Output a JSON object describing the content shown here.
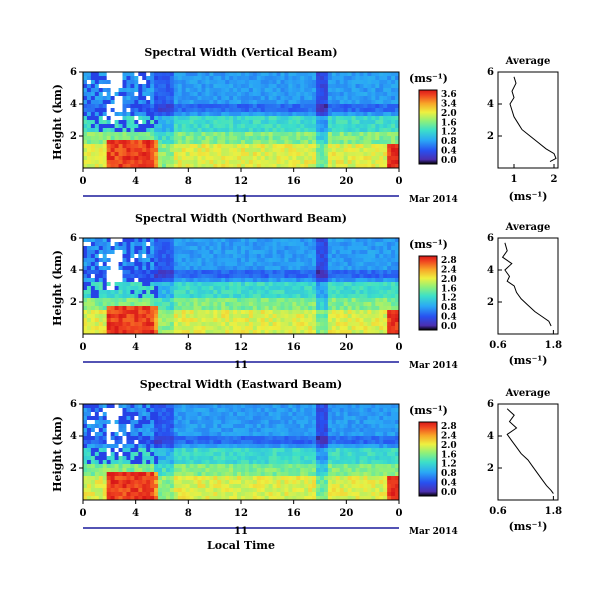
{
  "chart_data": [
    {
      "type": "heatmap",
      "title": "Spectral Width (Vertical Beam)",
      "ylabel": "Height (km)",
      "xlabel": "",
      "x_ticks": [
        "0",
        "4",
        "8",
        "12",
        "16",
        "20",
        "0"
      ],
      "y_ticks": [
        "6",
        "4",
        "2"
      ],
      "xlim": [
        0,
        24
      ],
      "ylim": [
        0,
        6
      ],
      "date_label": "11",
      "date_suffix": "Mar 2014",
      "colorbar": {
        "unit": "(ms⁻¹)",
        "ticks": [
          "3.6",
          "3.4",
          "2.0",
          "1.6",
          "1.2",
          "0.8",
          "0.4",
          "0.0"
        ]
      },
      "profile": {
        "title": "Average",
        "xlabel": "(ms⁻¹)",
        "x_ticks": [
          "1",
          "2"
        ],
        "xlim": [
          0.6,
          2.1
        ],
        "y_ticks": [
          "6",
          "4",
          "2"
        ],
        "points": [
          [
            1.0,
            5.7
          ],
          [
            1.05,
            5.3
          ],
          [
            0.95,
            4.8
          ],
          [
            1.0,
            4.4
          ],
          [
            0.9,
            4.0
          ],
          [
            0.95,
            3.6
          ],
          [
            1.0,
            3.2
          ],
          [
            1.1,
            2.8
          ],
          [
            1.2,
            2.4
          ],
          [
            1.4,
            2.0
          ],
          [
            1.6,
            1.6
          ],
          [
            1.8,
            1.2
          ],
          [
            2.0,
            0.9
          ],
          [
            2.05,
            0.6
          ],
          [
            1.9,
            0.4
          ]
        ]
      }
    },
    {
      "type": "heatmap",
      "title": "Spectral Width (Northward Beam)",
      "ylabel": "Height (km)",
      "xlabel": "",
      "x_ticks": [
        "0",
        "4",
        "8",
        "12",
        "16",
        "20",
        "0"
      ],
      "y_ticks": [
        "6",
        "4",
        "2"
      ],
      "xlim": [
        0,
        24
      ],
      "ylim": [
        0,
        6
      ],
      "date_label": "11",
      "date_suffix": "Mar 2014",
      "colorbar": {
        "unit": "(ms⁻¹)",
        "ticks": [
          "2.8",
          "2.4",
          "2.0",
          "1.6",
          "1.2",
          "0.8",
          "0.4",
          "0.0"
        ]
      },
      "profile": {
        "title": "Average",
        "xlabel": "(ms⁻¹)",
        "x_ticks": [
          "0.6",
          "1.8"
        ],
        "xlim": [
          0.6,
          1.9
        ],
        "y_ticks": [
          "6",
          "4",
          "2"
        ],
        "points": [
          [
            0.75,
            5.7
          ],
          [
            0.8,
            5.2
          ],
          [
            0.7,
            4.8
          ],
          [
            0.9,
            4.4
          ],
          [
            0.75,
            4.0
          ],
          [
            0.85,
            3.6
          ],
          [
            0.8,
            3.3
          ],
          [
            0.95,
            3.0
          ],
          [
            1.0,
            2.6
          ],
          [
            1.1,
            2.2
          ],
          [
            1.25,
            1.8
          ],
          [
            1.4,
            1.4
          ],
          [
            1.55,
            1.1
          ],
          [
            1.7,
            0.8
          ],
          [
            1.75,
            0.5
          ]
        ]
      }
    },
    {
      "type": "heatmap",
      "title": "Spectral Width (Eastward Beam)",
      "ylabel": "Height (km)",
      "xlabel": "Local Time",
      "x_ticks": [
        "0",
        "4",
        "8",
        "12",
        "16",
        "20",
        "0"
      ],
      "y_ticks": [
        "6",
        "4",
        "2"
      ],
      "xlim": [
        0,
        24
      ],
      "ylim": [
        0,
        6
      ],
      "date_label": "11",
      "date_suffix": "Mar 2014",
      "colorbar": {
        "unit": "(ms⁻¹)",
        "ticks": [
          "2.8",
          "2.4",
          "2.0",
          "1.6",
          "1.2",
          "0.8",
          "0.4",
          "0.0"
        ]
      },
      "profile": {
        "title": "Average",
        "xlabel": "(ms⁻¹)",
        "x_ticks": [
          "0.6",
          "1.8"
        ],
        "xlim": [
          0.6,
          1.9
        ],
        "y_ticks": [
          "6",
          "4",
          "2"
        ],
        "points": [
          [
            0.8,
            5.7
          ],
          [
            0.95,
            5.3
          ],
          [
            0.85,
            4.9
          ],
          [
            1.0,
            4.5
          ],
          [
            0.8,
            4.1
          ],
          [
            0.9,
            3.7
          ],
          [
            1.0,
            3.3
          ],
          [
            1.1,
            2.9
          ],
          [
            1.25,
            2.5
          ],
          [
            1.35,
            2.1
          ],
          [
            1.45,
            1.7
          ],
          [
            1.55,
            1.3
          ],
          [
            1.65,
            0.9
          ],
          [
            1.75,
            0.6
          ],
          [
            1.8,
            0.4
          ]
        ]
      }
    }
  ]
}
